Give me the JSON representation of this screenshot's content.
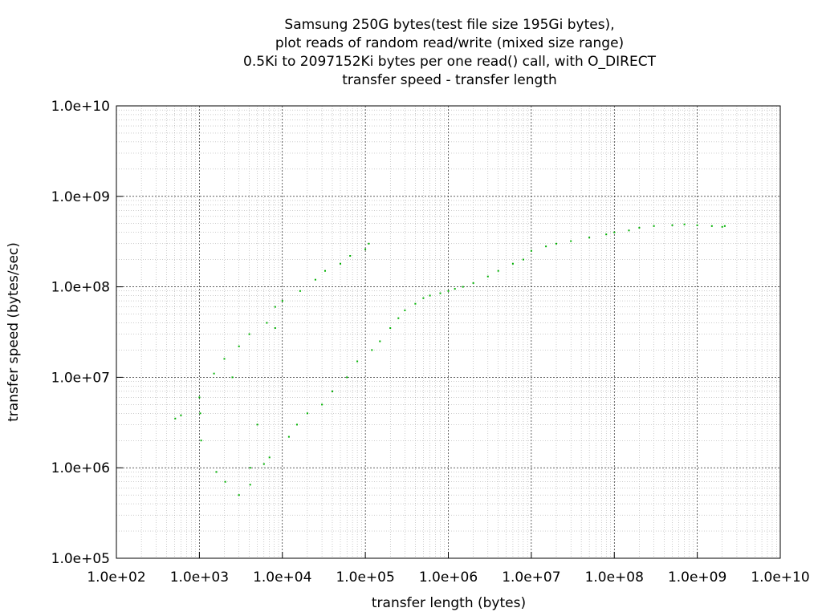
{
  "chart_data": {
    "type": "scatter",
    "title_lines": [
      "Samsung 250G bytes(test file size 195Gi bytes),",
      "plot reads of random read/write (mixed size range)",
      "0.5Ki to 2097152Ki bytes per one read() call, with O_DIRECT",
      "transfer speed - transfer length"
    ],
    "xlabel": "transfer length (bytes)",
    "ylabel": "transfer speed (bytes/sec)",
    "x_scale": "log",
    "y_scale": "log",
    "xlim": [
      100,
      10000000000
    ],
    "ylim": [
      100000,
      10000000000
    ],
    "x_ticks": [
      {
        "value": 100,
        "label": "1.0e+02"
      },
      {
        "value": 1000,
        "label": "1.0e+03"
      },
      {
        "value": 10000,
        "label": "1.0e+04"
      },
      {
        "value": 100000,
        "label": "1.0e+05"
      },
      {
        "value": 1000000,
        "label": "1.0e+06"
      },
      {
        "value": 10000000,
        "label": "1.0e+07"
      },
      {
        "value": 100000000,
        "label": "1.0e+08"
      },
      {
        "value": 1000000000,
        "label": "1.0e+09"
      },
      {
        "value": 10000000000,
        "label": "1.0e+10"
      }
    ],
    "y_ticks": [
      {
        "value": 100000,
        "label": "1.0e+05"
      },
      {
        "value": 1000000,
        "label": "1.0e+06"
      },
      {
        "value": 10000000,
        "label": "1.0e+07"
      },
      {
        "value": 100000000,
        "label": "1.0e+08"
      },
      {
        "value": 1000000000,
        "label": "1.0e+09"
      },
      {
        "value": 10000000000,
        "label": "1.0e+10"
      }
    ],
    "grid": true,
    "point_color": "#00b000",
    "series": [
      {
        "points": [
          [
            512,
            3500000
          ],
          [
            600,
            3800000
          ],
          [
            1000,
            6000000
          ],
          [
            1024,
            4000000
          ],
          [
            1050,
            2000000
          ],
          [
            1500,
            11000000
          ],
          [
            1600,
            900000
          ],
          [
            2000,
            16000000
          ],
          [
            2048,
            700000
          ],
          [
            2500,
            10000000
          ],
          [
            3000,
            500000
          ],
          [
            3000,
            22000000
          ],
          [
            4096,
            1000000
          ],
          [
            4000,
            30000000
          ],
          [
            4096,
            650000
          ],
          [
            5000,
            3000000
          ],
          [
            6000,
            1100000
          ],
          [
            6500,
            40000000
          ],
          [
            7000,
            1300000
          ],
          [
            8192,
            60000000
          ],
          [
            8192,
            35000000
          ],
          [
            10000,
            70000000
          ],
          [
            12000,
            2200000
          ],
          [
            15000,
            3000000
          ],
          [
            16384,
            90000000
          ],
          [
            20000,
            4000000
          ],
          [
            25000,
            120000000
          ],
          [
            30000,
            5000000
          ],
          [
            32768,
            150000000
          ],
          [
            40000,
            7000000
          ],
          [
            50000,
            180000000
          ],
          [
            60000,
            10000000
          ],
          [
            65536,
            220000000
          ],
          [
            80000,
            15000000
          ],
          [
            100000,
            260000000
          ],
          [
            110000,
            300000000
          ],
          [
            120000,
            20000000
          ],
          [
            150000,
            25000000
          ],
          [
            200000,
            35000000
          ],
          [
            250000,
            45000000
          ],
          [
            300000,
            55000000
          ],
          [
            400000,
            65000000
          ],
          [
            500000,
            75000000
          ],
          [
            600000,
            80000000
          ],
          [
            800000,
            85000000
          ],
          [
            1000000,
            90000000
          ],
          [
            1200000,
            95000000
          ],
          [
            1500000,
            100000000
          ],
          [
            2000000,
            110000000
          ],
          [
            3000000,
            130000000
          ],
          [
            4000000,
            150000000
          ],
          [
            6000000,
            180000000
          ],
          [
            8000000,
            200000000
          ],
          [
            10000000,
            250000000
          ],
          [
            15000000,
            280000000
          ],
          [
            20000000,
            300000000
          ],
          [
            30000000,
            320000000
          ],
          [
            50000000,
            350000000
          ],
          [
            80000000,
            380000000
          ],
          [
            100000000,
            400000000
          ],
          [
            150000000,
            420000000
          ],
          [
            200000000,
            450000000
          ],
          [
            300000000,
            470000000
          ],
          [
            500000000,
            480000000
          ],
          [
            700000000,
            490000000
          ],
          [
            1000000000,
            480000000
          ],
          [
            1500000000,
            470000000
          ],
          [
            2000000000,
            460000000
          ],
          [
            2147483648,
            470000000
          ]
        ]
      }
    ]
  }
}
